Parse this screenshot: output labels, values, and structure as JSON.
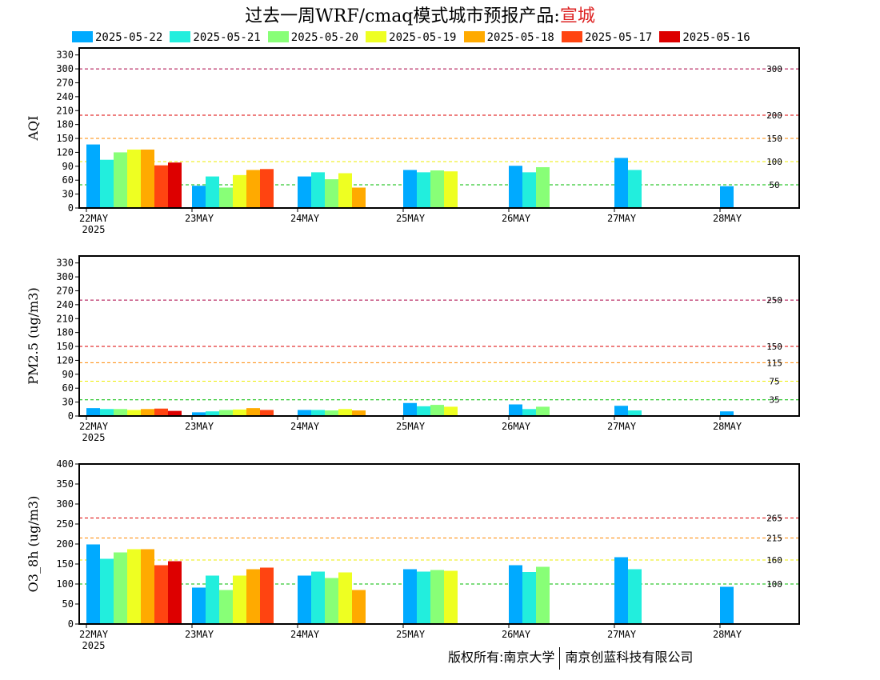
{
  "title": {
    "prefix": "过去一周WRF/cmaq模式城市预报产品:",
    "city": "宣城"
  },
  "legend": [
    {
      "label": "2025-05-22",
      "color": "#00aaff"
    },
    {
      "label": "2025-05-21",
      "color": "#22eedd"
    },
    {
      "label": "2025-05-20",
      "color": "#88ff77"
    },
    {
      "label": "2025-05-19",
      "color": "#eeff22"
    },
    {
      "label": "2025-05-18",
      "color": "#ffaa00"
    },
    {
      "label": "2025-05-17",
      "color": "#ff4411"
    },
    {
      "label": "2025-05-16",
      "color": "#dd0000"
    }
  ],
  "footer": {
    "left": "版权所有:南京大学",
    "right": "南京创蓝科技有限公司"
  },
  "chart_data": [
    {
      "type": "bar",
      "ylabel": "AQI",
      "ylim": [
        0,
        345
      ],
      "yticks": [
        0,
        30,
        60,
        90,
        120,
        150,
        180,
        210,
        240,
        270,
        300,
        330
      ],
      "categories": [
        "22MAY",
        "23MAY",
        "24MAY",
        "25MAY",
        "26MAY",
        "27MAY",
        "28MAY"
      ],
      "year_label": "2025",
      "thresholds": [
        {
          "value": 300,
          "label": "300",
          "color": "#aa0044"
        },
        {
          "value": 200,
          "label": "200",
          "color": "#dd0000"
        },
        {
          "value": 150,
          "label": "150",
          "color": "#ff8800"
        },
        {
          "value": 100,
          "label": "100",
          "color": "#eeee00"
        },
        {
          "value": 50,
          "label": "50",
          "color": "#00bb00"
        }
      ],
      "series": [
        {
          "name": "2025-05-22",
          "values": [
            137,
            48,
            68,
            82,
            91,
            108,
            47
          ]
        },
        {
          "name": "2025-05-21",
          "values": [
            104,
            68,
            77,
            77,
            77,
            82,
            null
          ]
        },
        {
          "name": "2025-05-20",
          "values": [
            120,
            44,
            62,
            81,
            88,
            null,
            null
          ]
        },
        {
          "name": "2025-05-19",
          "values": [
            126,
            71,
            75,
            79,
            null,
            null,
            null
          ]
        },
        {
          "name": "2025-05-18",
          "values": [
            126,
            82,
            44,
            null,
            null,
            null,
            null
          ]
        },
        {
          "name": "2025-05-17",
          "values": [
            92,
            84,
            null,
            null,
            null,
            null,
            null
          ]
        },
        {
          "name": "2025-05-16",
          "values": [
            98,
            null,
            null,
            null,
            null,
            null,
            null
          ]
        }
      ]
    },
    {
      "type": "bar",
      "ylabel": "PM2.5 (ug/m3)",
      "ylim": [
        0,
        345
      ],
      "yticks": [
        0,
        30,
        60,
        90,
        120,
        150,
        180,
        210,
        240,
        270,
        300,
        330
      ],
      "categories": [
        "22MAY",
        "23MAY",
        "24MAY",
        "25MAY",
        "26MAY",
        "27MAY",
        "28MAY"
      ],
      "year_label": "2025",
      "thresholds": [
        {
          "value": 250,
          "label": "250",
          "color": "#aa0044"
        },
        {
          "value": 150,
          "label": "150",
          "color": "#dd0000"
        },
        {
          "value": 115,
          "label": "115",
          "color": "#ff8800"
        },
        {
          "value": 75,
          "label": "75",
          "color": "#eeee00"
        },
        {
          "value": 35,
          "label": "35",
          "color": "#00bb00"
        }
      ],
      "series": [
        {
          "name": "2025-05-22",
          "values": [
            17,
            8,
            13,
            28,
            25,
            22,
            10
          ]
        },
        {
          "name": "2025-05-21",
          "values": [
            15,
            10,
            13,
            21,
            15,
            12,
            null
          ]
        },
        {
          "name": "2025-05-20",
          "values": [
            15,
            13,
            12,
            24,
            20,
            null,
            null
          ]
        },
        {
          "name": "2025-05-19",
          "values": [
            13,
            14,
            15,
            20,
            null,
            null,
            null
          ]
        },
        {
          "name": "2025-05-18",
          "values": [
            15,
            17,
            12,
            null,
            null,
            null,
            null
          ]
        },
        {
          "name": "2025-05-17",
          "values": [
            16,
            13,
            null,
            null,
            null,
            null,
            null
          ]
        },
        {
          "name": "2025-05-16",
          "values": [
            11,
            null,
            null,
            null,
            null,
            null,
            null
          ]
        }
      ]
    },
    {
      "type": "bar",
      "ylabel": "O3_8h (ug/m3)",
      "ylim": [
        0,
        400
      ],
      "yticks": [
        0,
        50,
        100,
        150,
        200,
        250,
        300,
        350,
        400
      ],
      "categories": [
        "22MAY",
        "23MAY",
        "24MAY",
        "25MAY",
        "26MAY",
        "27MAY",
        "28MAY"
      ],
      "year_label": "2025",
      "thresholds": [
        {
          "value": 265,
          "label": "265",
          "color": "#dd0000"
        },
        {
          "value": 215,
          "label": "215",
          "color": "#ff8800"
        },
        {
          "value": 160,
          "label": "160",
          "color": "#eeee00"
        },
        {
          "value": 100,
          "label": "100",
          "color": "#00bb00"
        }
      ],
      "series": [
        {
          "name": "2025-05-22",
          "values": [
            199,
            91,
            121,
            137,
            147,
            167,
            93
          ]
        },
        {
          "name": "2025-05-21",
          "values": [
            163,
            121,
            131,
            131,
            130,
            137,
            null
          ]
        },
        {
          "name": "2025-05-20",
          "values": [
            179,
            85,
            115,
            135,
            143,
            null,
            null
          ]
        },
        {
          "name": "2025-05-19",
          "values": [
            187,
            121,
            129,
            133,
            null,
            null,
            null
          ]
        },
        {
          "name": "2025-05-18",
          "values": [
            187,
            137,
            85,
            null,
            null,
            null,
            null
          ]
        },
        {
          "name": "2025-05-17",
          "values": [
            147,
            141,
            null,
            null,
            null,
            null,
            null
          ]
        },
        {
          "name": "2025-05-16",
          "values": [
            157,
            null,
            null,
            null,
            null,
            null,
            null
          ]
        }
      ]
    }
  ]
}
